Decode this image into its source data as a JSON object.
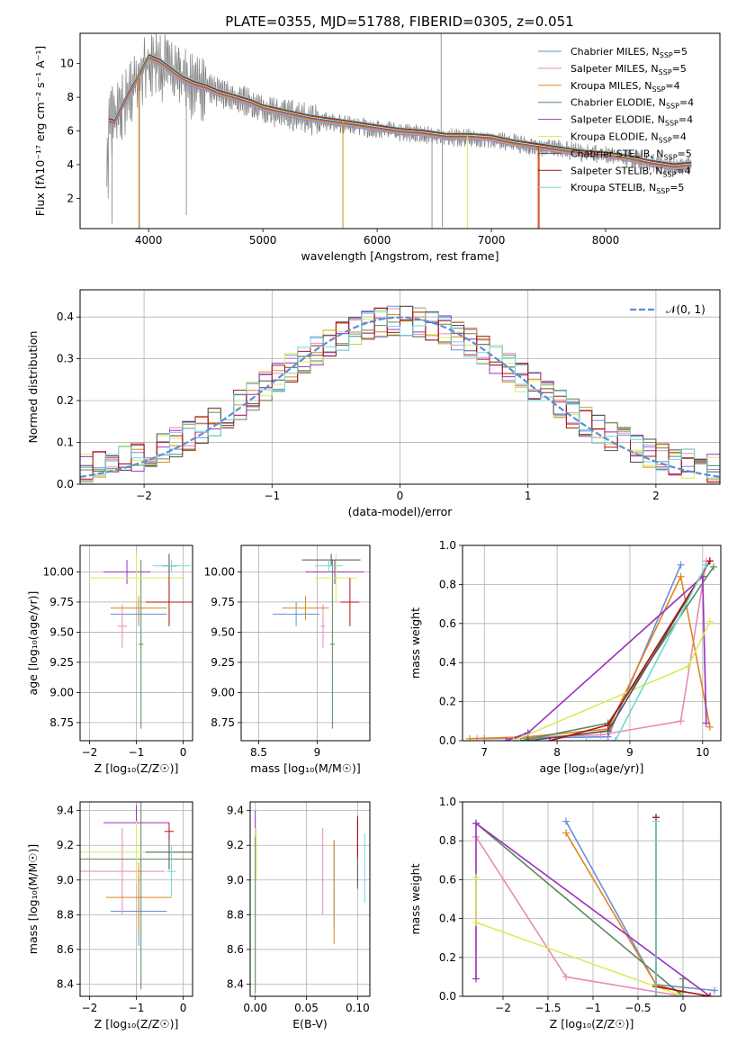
{
  "figure_title": "PLATE=0355, MJD=51788, FIBERID=0305, z=0.051",
  "series": [
    {
      "name": "Chabrier MILES, N",
      "sub": "SSP",
      "n": "=5",
      "color": "#6a8fd8"
    },
    {
      "name": "Salpeter MILES, N",
      "sub": "SSP",
      "n": "=5",
      "color": "#e88ab8"
    },
    {
      "name": "Kroupa MILES, N",
      "sub": "SSP",
      "n": "=4",
      "color": "#e0861c"
    },
    {
      "name": "Chabrier ELODIE, N",
      "sub": "SSP",
      "n": "=4",
      "color": "#5c8a5c"
    },
    {
      "name": "Salpeter ELODIE, N",
      "sub": "SSP",
      "n": "=4",
      "color": "#9b30c0"
    },
    {
      "name": "Kroupa ELODIE, N",
      "sub": "SSP",
      "n": "=4",
      "color": "#d8ec5a"
    },
    {
      "name": "Chabrier STELIB, N",
      "sub": "SSP",
      "n": "=5",
      "color": "#505050"
    },
    {
      "name": "Salpeter STELIB, N",
      "sub": "SSP",
      "n": "=4",
      "color": "#b01010"
    },
    {
      "name": "Kroupa STELIB, N",
      "sub": "SSP",
      "n": "=5",
      "color": "#70d8d8"
    }
  ],
  "chart_data": [
    {
      "id": "spectrum",
      "type": "line",
      "xlabel": "wavelength [Angstrom, rest frame]",
      "ylabel": "Flux [fλ10⁻¹⁷ erg cm⁻² s⁻¹ A⁻¹]",
      "xlim": [
        3400,
        9000
      ],
      "ylim": [
        0.2,
        11.8
      ],
      "xticks": [
        4000,
        5000,
        6000,
        7000,
        8000
      ],
      "yticks": [
        2,
        4,
        6,
        8,
        10
      ],
      "observed_color": "#808080",
      "observed_points": [
        [
          3650,
          6.8
        ],
        [
          3700,
          6.6
        ],
        [
          3800,
          7.8
        ],
        [
          3900,
          9.0
        ],
        [
          4000,
          10.2
        ],
        [
          4100,
          9.8
        ],
        [
          4200,
          9.6
        ],
        [
          4300,
          9.0
        ],
        [
          4400,
          8.6
        ],
        [
          4500,
          8.6
        ],
        [
          4600,
          8.3
        ],
        [
          4700,
          8.0
        ],
        [
          4800,
          7.9
        ],
        [
          4900,
          7.6
        ],
        [
          5000,
          7.3
        ],
        [
          5200,
          7.0
        ],
        [
          5400,
          6.7
        ],
        [
          5600,
          6.5
        ],
        [
          5800,
          6.3
        ],
        [
          6000,
          6.1
        ],
        [
          6200,
          5.9
        ],
        [
          6400,
          5.8
        ],
        [
          6600,
          5.6
        ],
        [
          6800,
          5.6
        ],
        [
          7000,
          5.5
        ],
        [
          7200,
          5.3
        ],
        [
          7400,
          5.0
        ],
        [
          7600,
          4.9
        ],
        [
          7800,
          4.7
        ],
        [
          8000,
          4.6
        ],
        [
          8200,
          4.4
        ],
        [
          8400,
          4.1
        ],
        [
          8600,
          3.9
        ],
        [
          8750,
          4.0
        ]
      ],
      "model_points": [
        [
          3650,
          6.6
        ],
        [
          3700,
          6.5
        ],
        [
          3800,
          7.9
        ],
        [
          3900,
          9.1
        ],
        [
          4000,
          10.4
        ],
        [
          4100,
          10.1
        ],
        [
          4200,
          9.6
        ],
        [
          4300,
          9.1
        ],
        [
          4400,
          8.8
        ],
        [
          4500,
          8.6
        ],
        [
          4600,
          8.3
        ],
        [
          4700,
          8.1
        ],
        [
          4800,
          7.9
        ],
        [
          4900,
          7.7
        ],
        [
          5000,
          7.4
        ],
        [
          5200,
          7.1
        ],
        [
          5400,
          6.8
        ],
        [
          5600,
          6.6
        ],
        [
          5800,
          6.4
        ],
        [
          6000,
          6.2
        ],
        [
          6200,
          6.0
        ],
        [
          6400,
          5.9
        ],
        [
          6600,
          5.7
        ],
        [
          6800,
          5.7
        ],
        [
          7000,
          5.6
        ],
        [
          7200,
          5.3
        ],
        [
          7400,
          5.1
        ],
        [
          7600,
          4.9
        ],
        [
          7800,
          4.7
        ],
        [
          8000,
          4.6
        ],
        [
          8200,
          4.4
        ],
        [
          8400,
          4.1
        ],
        [
          8600,
          3.9
        ],
        [
          8750,
          4.0
        ]
      ]
    },
    {
      "id": "residuals",
      "type": "line",
      "xlabel": "(data-model)/error",
      "ylabel": "Normed distribution",
      "xlim": [
        -2.5,
        2.5
      ],
      "ylim": [
        0,
        0.465
      ],
      "xticks": [
        -2,
        -1,
        0,
        1,
        2
      ],
      "yticks": [
        0.0,
        0.1,
        0.2,
        0.3,
        0.4
      ],
      "legend": "𝒩(0, 1)",
      "legend_position": "top-right",
      "normal_color": "#5b8fd0"
    },
    {
      "id": "age_vs_Z",
      "type": "scatter",
      "xlabel": "Z [log₁₀(Z/Z☉)]",
      "ylabel": "age  [log₁₀(age/yr)]",
      "xlim": [
        -2.2,
        0.2
      ],
      "ylim": [
        8.6,
        10.22
      ],
      "xticks": [
        -2,
        -1,
        0
      ],
      "yticks": [
        8.75,
        9.0,
        9.25,
        9.5,
        9.75,
        10.0
      ],
      "points": [
        {
          "s": 0,
          "x": -0.95,
          "y": 9.65,
          "xerr": 0.6,
          "yerr": 0.1
        },
        {
          "s": 1,
          "x": -1.3,
          "y": 9.55,
          "xerr": 0.1,
          "yerr": 0.18
        },
        {
          "s": 2,
          "x": -0.95,
          "y": 9.7,
          "xerr": 0.6,
          "yerr": 0.1
        },
        {
          "s": 3,
          "x": -0.9,
          "y": 9.4,
          "xerr": 0.05,
          "yerr": 0.7
        },
        {
          "s": 4,
          "x": -1.2,
          "y": 10.0,
          "xerr": 0.5,
          "yerr": 0.1
        },
        {
          "s": 5,
          "x": -1.0,
          "y": 9.95,
          "xerr": 1.0,
          "yerr": 0.2
        },
        {
          "s": 6,
          "x": -0.3,
          "y": 10.05,
          "xerr": 0.15,
          "yerr": 0.1
        },
        {
          "s": 7,
          "x": -0.3,
          "y": 9.75,
          "xerr": 0.5,
          "yerr": 0.2
        },
        {
          "s": 8,
          "x": -0.25,
          "y": 10.05,
          "xerr": 0.4,
          "yerr": 0.05
        }
      ]
    },
    {
      "id": "age_vs_mass",
      "type": "scatter",
      "xlabel": "mass [log₁₀(M/M☉)]",
      "ylabel": "",
      "xlim": [
        8.35,
        9.45
      ],
      "ylim": [
        8.6,
        10.22
      ],
      "xticks": [
        8.5,
        9.0
      ],
      "yticks": [
        8.75,
        9.0,
        9.25,
        9.5,
        9.75,
        10.0
      ],
      "points": [
        {
          "s": 0,
          "x": 8.82,
          "y": 9.65,
          "xerr": 0.2,
          "yerr": 0.1
        },
        {
          "s": 1,
          "x": 9.05,
          "y": 9.55,
          "xerr": 0.02,
          "yerr": 0.18
        },
        {
          "s": 2,
          "x": 8.9,
          "y": 9.7,
          "xerr": 0.2,
          "yerr": 0.1
        },
        {
          "s": 3,
          "x": 9.13,
          "y": 9.4,
          "xerr": 0.02,
          "yerr": 0.7
        },
        {
          "s": 4,
          "x": 9.15,
          "y": 10.0,
          "xerr": 0.25,
          "yerr": 0.1
        },
        {
          "s": 5,
          "x": 9.16,
          "y": 9.95,
          "xerr": 0.18,
          "yerr": 0.2
        },
        {
          "s": 6,
          "x": 9.12,
          "y": 10.1,
          "xerr": 0.25,
          "yerr": 0.05
        },
        {
          "s": 7,
          "x": 9.28,
          "y": 9.75,
          "xerr": 0.08,
          "yerr": 0.2
        },
        {
          "s": 8,
          "x": 9.1,
          "y": 10.05,
          "xerr": 0.12,
          "yerr": 0.05
        }
      ]
    },
    {
      "id": "weight_vs_age",
      "type": "line",
      "xlabel": "age  [log₁₀(age/yr)]",
      "ylabel": "mass weight",
      "xlim": [
        6.7,
        10.25
      ],
      "ylim": [
        0,
        1.0
      ],
      "xticks": [
        7,
        8,
        9,
        10
      ],
      "yticks": [
        0.0,
        0.2,
        0.4,
        0.6,
        0.8,
        1.0
      ],
      "lines": [
        {
          "s": 0,
          "points": [
            [
              7.0,
              0.01
            ],
            [
              8.7,
              0.02
            ],
            [
              9.7,
              0.9
            ]
          ]
        },
        {
          "s": 1,
          "points": [
            [
              6.9,
              0.01
            ],
            [
              8.6,
              0.03
            ],
            [
              9.7,
              0.1
            ],
            [
              10.05,
              0.92
            ]
          ]
        },
        {
          "s": 2,
          "points": [
            [
              6.8,
              0.01
            ],
            [
              7.6,
              0.02
            ],
            [
              8.7,
              0.06
            ],
            [
              9.7,
              0.84
            ],
            [
              10.1,
              0.07
            ]
          ]
        },
        {
          "s": 3,
          "points": [
            [
              7.5,
              0.0
            ],
            [
              8.7,
              0.09
            ],
            [
              10.15,
              0.89
            ]
          ]
        },
        {
          "s": 4,
          "points": [
            [
              7.3,
              0.0
            ],
            [
              7.6,
              0.04
            ],
            [
              10.0,
              0.84
            ],
            [
              10.05,
              0.09
            ]
          ]
        },
        {
          "s": 5,
          "points": [
            [
              7.4,
              0.0
            ],
            [
              9.8,
              0.38
            ],
            [
              10.1,
              0.61
            ]
          ]
        },
        {
          "s": 6,
          "points": [
            [
              7.6,
              0.0
            ],
            [
              8.7,
              0.05
            ],
            [
              10.1,
              0.92
            ]
          ]
        },
        {
          "s": 7,
          "points": [
            [
              7.9,
              0.0
            ],
            [
              8.7,
              0.08
            ],
            [
              10.1,
              0.92
            ]
          ]
        },
        {
          "s": 8,
          "points": [
            [
              8.4,
              0.0
            ],
            [
              8.8,
              0.0
            ],
            [
              10.05,
              0.9
            ]
          ]
        }
      ]
    },
    {
      "id": "mass_vs_Z",
      "type": "scatter",
      "xlabel": "Z [log₁₀(Z/Z☉)]",
      "ylabel": "mass [log₁₀(M/M☉)]",
      "xlim": [
        -2.2,
        0.2
      ],
      "ylim": [
        8.33,
        9.45
      ],
      "xticks": [
        -2,
        -1,
        0
      ],
      "yticks": [
        8.4,
        8.6,
        8.8,
        9.0,
        9.2,
        9.4
      ],
      "points": [
        {
          "s": 0,
          "x": -0.95,
          "y": 8.82,
          "xerr": 0.6,
          "yerr": 0.2
        },
        {
          "s": 1,
          "x": -1.3,
          "y": 9.05,
          "xerr": 0.9,
          "yerr": 0.25
        },
        {
          "s": 2,
          "x": -0.95,
          "y": 8.9,
          "xerr": 0.7,
          "yerr": 0.2
        },
        {
          "s": 3,
          "x": -0.9,
          "y": 9.12,
          "xerr": 1.3,
          "yerr": 0.75
        },
        {
          "s": 4,
          "x": -1.0,
          "y": 9.33,
          "xerr": 0.7,
          "yerr": 0.1
        },
        {
          "s": 5,
          "x": -1.0,
          "y": 9.16,
          "xerr": 1.2,
          "yerr": 0.18
        },
        {
          "s": 6,
          "x": -0.3,
          "y": 9.16,
          "xerr": 0.5,
          "yerr": 0.1
        },
        {
          "s": 7,
          "x": -0.3,
          "y": 9.28,
          "xerr": 0.1,
          "yerr": 0.05
        },
        {
          "s": 8,
          "x": -0.25,
          "y": 9.05,
          "xerr": 0.1,
          "yerr": 0.15
        }
      ]
    },
    {
      "id": "mass_vs_ebv",
      "type": "scatter",
      "xlabel": "E(B-V)",
      "ylabel": "",
      "xlim": [
        -0.005,
        0.112
      ],
      "ylim": [
        8.33,
        9.45
      ],
      "xticks": [
        0.0,
        0.05,
        0.1
      ],
      "yticks": [
        8.4,
        8.6,
        8.8,
        9.0,
        9.2,
        9.4
      ],
      "points": [
        {
          "s": 0,
          "x": 0.077,
          "y": 8.98,
          "xerr": 0.0,
          "yerr": 0.25
        },
        {
          "s": 1,
          "x": 0.066,
          "y": 9.05,
          "xerr": 0.0,
          "yerr": 0.25
        },
        {
          "s": 2,
          "x": 0.077,
          "y": 8.93,
          "xerr": 0.0,
          "yerr": 0.3
        },
        {
          "s": 3,
          "x": 0.0,
          "y": 8.8,
          "xerr": 0.0,
          "yerr": 0.45
        },
        {
          "s": 4,
          "x": 0.0,
          "y": 9.35,
          "xerr": 0.0,
          "yerr": 0.05
        },
        {
          "s": 5,
          "x": 0.001,
          "y": 9.15,
          "xerr": 0.0,
          "yerr": 0.15
        },
        {
          "s": 6,
          "x": 0.1,
          "y": 9.15,
          "xerr": 0.0,
          "yerr": 0.2
        },
        {
          "s": 7,
          "x": 0.1,
          "y": 9.25,
          "xerr": 0.0,
          "yerr": 0.12
        },
        {
          "s": 8,
          "x": 0.107,
          "y": 9.07,
          "xerr": 0.0,
          "yerr": 0.2
        }
      ]
    },
    {
      "id": "weight_vs_Z",
      "type": "line",
      "xlabel": "Z [log₁₀(Z/Z☉)]",
      "ylabel": "mass weight",
      "xlim": [
        -2.45,
        0.42
      ],
      "ylim": [
        0,
        1.0
      ],
      "xticks": [
        -2.0,
        -1.5,
        -1.0,
        -0.5,
        0.0
      ],
      "yticks": [
        0.0,
        0.2,
        0.4,
        0.6,
        0.8,
        1.0
      ],
      "lines": [
        {
          "s": 0,
          "points": [
            [
              -1.3,
              0.9
            ],
            [
              -0.3,
              0.06
            ],
            [
              0.35,
              0.03
            ]
          ]
        },
        {
          "s": 1,
          "points": [
            [
              -2.3,
              0.82
            ],
            [
              -1.3,
              0.1
            ],
            [
              0.0,
              0.0
            ]
          ]
        },
        {
          "s": 2,
          "points": [
            [
              -1.3,
              0.84
            ],
            [
              -0.3,
              0.06
            ],
            [
              0.0,
              0.02
            ]
          ]
        },
        {
          "s": 3,
          "points": [
            [
              -2.3,
              0.89
            ],
            [
              0.0,
              0.0
            ],
            [
              0.0,
              0.09
            ]
          ]
        },
        {
          "s": 4,
          "points": [
            [
              -2.3,
              0.09
            ],
            [
              -2.3,
              0.89
            ],
            [
              0.3,
              0.0
            ]
          ]
        },
        {
          "s": 5,
          "points": [
            [
              -2.3,
              0.61
            ],
            [
              -2.3,
              0.38
            ],
            [
              -0.3,
              0.05
            ],
            [
              0.0,
              0.0
            ]
          ]
        },
        {
          "s": 6,
          "points": [
            [
              -0.3,
              0.92
            ],
            [
              -0.3,
              0.0
            ]
          ]
        },
        {
          "s": 7,
          "points": [
            [
              -0.3,
              0.92
            ],
            [
              -0.3,
              0.05
            ],
            [
              0.3,
              0.0
            ]
          ]
        },
        {
          "s": 8,
          "points": [
            [
              -0.3,
              0.9
            ],
            [
              -0.3,
              0.0
            ],
            [
              0.0,
              0.0
            ]
          ]
        }
      ]
    }
  ]
}
